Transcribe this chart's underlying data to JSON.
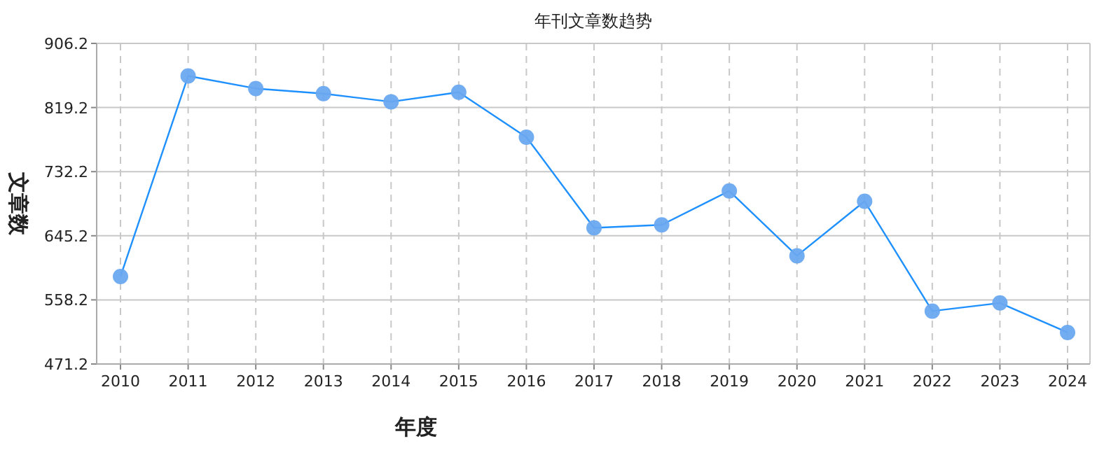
{
  "chart_data": {
    "type": "line",
    "title": "年刊文章数趋势",
    "xlabel": "年度",
    "ylabel": "文章数",
    "categories": [
      "2010",
      "2011",
      "2012",
      "2013",
      "2014",
      "2015",
      "2016",
      "2017",
      "2018",
      "2019",
      "2020",
      "2021",
      "2022",
      "2023",
      "2024"
    ],
    "series": [
      {
        "color": "#1e90ff",
        "values": [
          590,
          862,
          845,
          838,
          827,
          840,
          779,
          656,
          660,
          706,
          618,
          692,
          543,
          554,
          514
        ]
      }
    ],
    "ylim": [
      471.2,
      906.2
    ],
    "yticks": [
      471.2,
      558.2,
      645.2,
      732.2,
      819.2,
      906.2
    ],
    "grid": true,
    "marker": "circle",
    "line_style": "solid"
  }
}
